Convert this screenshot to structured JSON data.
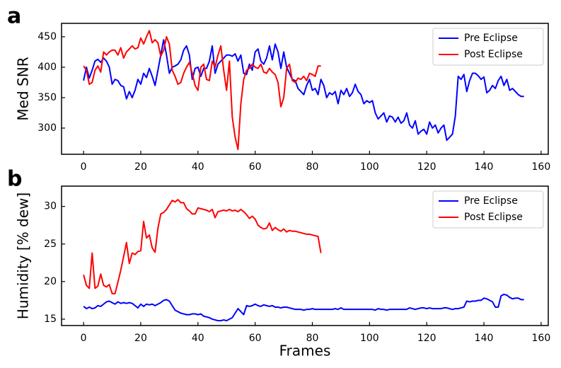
{
  "chart_data": [
    {
      "type": "line",
      "panel_label": "a",
      "ylabel": "Med SNR",
      "xlim": [
        -7.7,
        162.5
      ],
      "ylim": [
        257,
        472
      ],
      "xticks": [
        0,
        20,
        40,
        60,
        80,
        100,
        120,
        140,
        160
      ],
      "yticks": [
        300,
        350,
        400,
        450
      ],
      "legend": "upper right",
      "x": [
        0,
        1,
        2,
        3,
        4,
        5,
        6,
        7,
        8,
        9,
        10,
        11,
        12,
        13,
        14,
        15,
        16,
        17,
        18,
        19,
        20,
        21,
        22,
        23,
        24,
        25,
        26,
        27,
        28,
        29,
        30,
        31,
        32,
        33,
        34,
        35,
        36,
        37,
        38,
        39,
        40,
        41,
        42,
        43,
        44,
        45,
        46,
        47,
        48,
        49,
        50,
        51,
        52,
        53,
        54,
        55,
        56,
        57,
        58,
        59,
        60,
        61,
        62,
        63,
        64,
        65,
        66,
        67,
        68,
        69,
        70,
        71,
        72,
        73,
        74,
        75,
        76,
        77,
        78,
        79,
        80,
        81,
        82,
        83,
        84,
        85,
        86,
        87,
        88,
        89,
        90,
        91,
        92,
        93,
        94,
        95,
        96,
        97,
        98,
        99,
        100,
        101,
        102,
        103,
        104,
        105,
        106,
        107,
        108,
        109,
        110,
        111,
        112,
        113,
        114,
        115,
        116,
        117,
        118,
        119,
        120,
        121,
        122,
        123,
        124,
        125,
        126,
        127,
        128,
        129,
        130,
        131,
        132,
        133,
        134,
        135,
        136,
        137,
        138,
        139,
        140,
        141,
        142,
        143,
        144,
        145,
        146,
        147,
        148,
        149,
        150,
        151,
        152,
        153,
        154
      ],
      "series": [
        {
          "name": "Pre Eclipse",
          "color": "#0000ff",
          "values": [
            378,
            400,
            382,
            395,
            410,
            413,
            408,
            415,
            410,
            400,
            372,
            380,
            378,
            370,
            368,
            348,
            360,
            350,
            362,
            380,
            372,
            390,
            383,
            398,
            385,
            370,
            395,
            420,
            445,
            420,
            390,
            400,
            402,
            405,
            412,
            428,
            435,
            420,
            380,
            398,
            400,
            385,
            398,
            398,
            410,
            435,
            390,
            405,
            410,
            415,
            420,
            420,
            418,
            422,
            410,
            420,
            390,
            388,
            405,
            395,
            425,
            430,
            410,
            405,
            415,
            435,
            412,
            438,
            425,
            398,
            425,
            400,
            390,
            380,
            378,
            365,
            360,
            355,
            370,
            380,
            362,
            365,
            355,
            380,
            370,
            350,
            358,
            355,
            360,
            340,
            362,
            355,
            365,
            352,
            358,
            372,
            360,
            355,
            340,
            345,
            342,
            345,
            325,
            315,
            320,
            325,
            310,
            320,
            318,
            310,
            318,
            308,
            312,
            325,
            305,
            300,
            312,
            290,
            295,
            298,
            290,
            310,
            300,
            305,
            292,
            300,
            305,
            280,
            285,
            290,
            320,
            385,
            380,
            388,
            360,
            378,
            390,
            390,
            386,
            380,
            384,
            358,
            362,
            370,
            365,
            378,
            385,
            370,
            380,
            362,
            365,
            360,
            355,
            352,
            352
          ]
        },
        {
          "name": "Post Eclipse",
          "color": "#ff0000",
          "values": [
            402,
            395,
            372,
            375,
            395,
            402,
            392,
            425,
            420,
            425,
            428,
            428,
            420,
            432,
            415,
            425,
            430,
            435,
            430,
            432,
            448,
            438,
            450,
            460,
            440,
            445,
            440,
            418,
            428,
            450,
            438,
            395,
            385,
            372,
            375,
            390,
            400,
            408,
            390,
            370,
            362,
            400,
            405,
            380,
            378,
            410,
            400,
            420,
            435,
            395,
            362,
            410,
            318,
            285,
            265,
            340,
            380,
            395,
            398,
            405,
            400,
            398,
            405,
            392,
            390,
            398,
            392,
            388,
            375,
            335,
            350,
            398,
            405,
            378,
            375,
            382,
            380,
            385,
            378,
            390,
            388,
            385,
            402,
            402,
            null,
            null,
            null,
            null,
            null,
            null,
            null,
            null,
            null,
            null,
            null,
            null,
            null,
            null,
            null,
            null,
            null,
            null,
            null,
            null,
            null,
            null,
            null,
            null,
            null,
            null,
            null,
            null,
            null,
            null,
            null,
            null,
            null,
            null,
            null,
            null,
            null,
            null,
            null,
            null,
            null,
            null,
            null,
            null,
            null,
            null,
            null,
            null,
            null,
            null,
            null,
            null,
            null,
            null,
            null,
            null,
            null,
            null,
            null,
            null,
            null,
            null,
            null,
            null,
            null,
            null,
            null,
            null,
            null,
            null,
            null
          ]
        }
      ]
    },
    {
      "type": "line",
      "panel_label": "b",
      "ylabel": "Humidity [% dew]",
      "xlabel": "Frames",
      "xlim": [
        -7.7,
        162.5
      ],
      "ylim": [
        14.15,
        32.7
      ],
      "xticks": [
        0,
        20,
        40,
        60,
        80,
        100,
        120,
        140,
        160
      ],
      "yticks": [
        15,
        20,
        25,
        30
      ],
      "legend": "upper right",
      "x": [
        0,
        1,
        2,
        3,
        4,
        5,
        6,
        7,
        8,
        9,
        10,
        11,
        12,
        13,
        14,
        15,
        16,
        17,
        18,
        19,
        20,
        21,
        22,
        23,
        24,
        25,
        26,
        27,
        28,
        29,
        30,
        31,
        32,
        33,
        34,
        35,
        36,
        37,
        38,
        39,
        40,
        41,
        42,
        43,
        44,
        45,
        46,
        47,
        48,
        49,
        50,
        51,
        52,
        53,
        54,
        55,
        56,
        57,
        58,
        59,
        60,
        61,
        62,
        63,
        64,
        65,
        66,
        67,
        68,
        69,
        70,
        71,
        72,
        73,
        74,
        75,
        76,
        77,
        78,
        79,
        80,
        81,
        82,
        83,
        84,
        85,
        86,
        87,
        88,
        89,
        90,
        91,
        92,
        93,
        94,
        95,
        96,
        97,
        98,
        99,
        100,
        101,
        102,
        103,
        104,
        105,
        106,
        107,
        108,
        109,
        110,
        111,
        112,
        113,
        114,
        115,
        116,
        117,
        118,
        119,
        120,
        121,
        122,
        123,
        124,
        125,
        126,
        127,
        128,
        129,
        130,
        131,
        132,
        133,
        134,
        135,
        136,
        137,
        138,
        139,
        140,
        141,
        142,
        143,
        144,
        145,
        146,
        147,
        148,
        149,
        150,
        151,
        152,
        153,
        154
      ],
      "series": [
        {
          "name": "Pre Eclipse",
          "color": "#0000ff",
          "values": [
            16.7,
            16.4,
            16.6,
            16.4,
            16.5,
            16.8,
            16.7,
            17.0,
            17.3,
            17.4,
            17.2,
            17.0,
            17.3,
            17.1,
            17.2,
            17.1,
            17.2,
            17.1,
            16.8,
            16.5,
            17.0,
            16.7,
            17.0,
            16.9,
            17.0,
            16.8,
            17.0,
            17.2,
            17.5,
            17.6,
            17.4,
            16.8,
            16.2,
            16.0,
            15.8,
            15.7,
            15.6,
            15.6,
            15.7,
            15.7,
            15.6,
            15.7,
            15.4,
            15.3,
            15.2,
            15.0,
            14.9,
            14.8,
            14.8,
            14.9,
            14.8,
            15.0,
            15.2,
            15.8,
            16.4,
            16.0,
            15.6,
            16.8,
            16.7,
            16.8,
            17.0,
            16.8,
            16.7,
            16.9,
            16.8,
            16.7,
            16.8,
            16.6,
            16.6,
            16.5,
            16.6,
            16.6,
            16.5,
            16.4,
            16.3,
            16.3,
            16.3,
            16.2,
            16.3,
            16.3,
            16.4,
            16.3,
            16.3,
            16.3,
            16.3,
            16.3,
            16.3,
            16.3,
            16.4,
            16.3,
            16.5,
            16.3,
            16.3,
            16.3,
            16.3,
            16.3,
            16.3,
            16.3,
            16.3,
            16.3,
            16.3,
            16.3,
            16.2,
            16.4,
            16.3,
            16.3,
            16.2,
            16.3,
            16.3,
            16.3,
            16.3,
            16.3,
            16.3,
            16.3,
            16.5,
            16.4,
            16.3,
            16.4,
            16.5,
            16.5,
            16.4,
            16.5,
            16.4,
            16.4,
            16.4,
            16.4,
            16.5,
            16.5,
            16.4,
            16.3,
            16.4,
            16.4,
            16.5,
            16.6,
            17.4,
            17.3,
            17.4,
            17.4,
            17.5,
            17.5,
            17.8,
            17.7,
            17.5,
            17.3,
            16.6,
            16.6,
            18.1,
            18.3,
            18.2,
            17.9,
            17.7,
            17.8,
            17.8,
            17.6,
            17.6
          ]
        },
        {
          "name": "Post Eclipse",
          "color": "#ff0000",
          "values": [
            20.9,
            19.5,
            19.1,
            23.8,
            19.1,
            19.4,
            21.0,
            19.5,
            19.3,
            19.6,
            18.4,
            18.4,
            19.9,
            21.5,
            23.3,
            25.2,
            22.4,
            23.8,
            23.6,
            24.0,
            24.1,
            28.0,
            25.8,
            26.2,
            24.5,
            23.9,
            27.1,
            29.0,
            29.2,
            29.6,
            30.2,
            30.8,
            30.6,
            30.9,
            30.5,
            30.5,
            29.7,
            29.4,
            29.0,
            29.0,
            29.8,
            29.7,
            29.6,
            29.5,
            29.3,
            29.6,
            28.5,
            29.3,
            29.4,
            29.5,
            29.4,
            29.6,
            29.4,
            29.5,
            29.3,
            29.6,
            29.3,
            28.9,
            28.4,
            28.7,
            28.3,
            27.5,
            27.2,
            27.0,
            27.1,
            27.8,
            26.8,
            27.2,
            26.9,
            26.7,
            27.0,
            26.6,
            26.8,
            26.7,
            26.7,
            26.6,
            26.5,
            26.4,
            26.3,
            26.3,
            26.2,
            26.1,
            26.0,
            23.8,
            null,
            null,
            null,
            null,
            null,
            null,
            null,
            null,
            null,
            null,
            null,
            null,
            null,
            null,
            null,
            null,
            null,
            null,
            null,
            null,
            null,
            null,
            null,
            null,
            null,
            null,
            null,
            null,
            null,
            null,
            null,
            null,
            null,
            null,
            null,
            null,
            null,
            null,
            null,
            null,
            null,
            null,
            null,
            null,
            null,
            null,
            null,
            null,
            null,
            null,
            null,
            null,
            null,
            null,
            null,
            null,
            null,
            null,
            null,
            null,
            null,
            null,
            null,
            null,
            null,
            null,
            null,
            null,
            null,
            null,
            null
          ]
        }
      ]
    }
  ]
}
